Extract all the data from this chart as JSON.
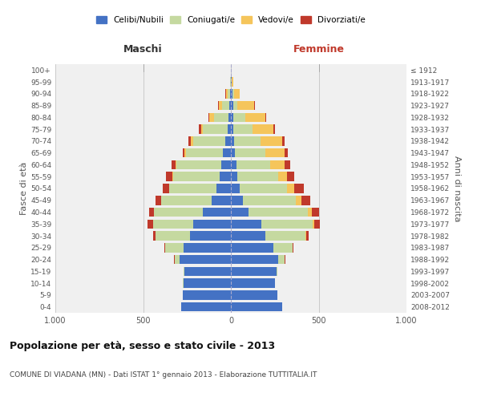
{
  "age_groups": [
    "0-4",
    "5-9",
    "10-14",
    "15-19",
    "20-24",
    "25-29",
    "30-34",
    "35-39",
    "40-44",
    "45-49",
    "50-54",
    "55-59",
    "60-64",
    "65-69",
    "70-74",
    "75-79",
    "80-84",
    "85-89",
    "90-94",
    "95-99",
    "100+"
  ],
  "birth_years": [
    "2008-2012",
    "2003-2007",
    "1998-2002",
    "1993-1997",
    "1988-1992",
    "1983-1987",
    "1978-1982",
    "1973-1977",
    "1968-1972",
    "1963-1967",
    "1958-1962",
    "1953-1957",
    "1948-1952",
    "1943-1947",
    "1938-1942",
    "1933-1937",
    "1928-1932",
    "1923-1927",
    "1918-1922",
    "1913-1917",
    "≤ 1912"
  ],
  "male": {
    "celibe": [
      285,
      275,
      270,
      265,
      290,
      270,
      235,
      215,
      160,
      110,
      80,
      65,
      55,
      45,
      30,
      20,
      15,
      10,
      5,
      2,
      2
    ],
    "coniugato": [
      0,
      0,
      2,
      5,
      30,
      105,
      195,
      230,
      280,
      285,
      270,
      265,
      255,
      210,
      185,
      140,
      80,
      40,
      15,
      2,
      0
    ],
    "vedovo": [
      0,
      0,
      0,
      0,
      0,
      0,
      0,
      0,
      0,
      2,
      3,
      5,
      5,
      8,
      12,
      10,
      30,
      20,
      8,
      2,
      0
    ],
    "divorziato": [
      0,
      0,
      0,
      0,
      3,
      5,
      15,
      30,
      25,
      30,
      35,
      35,
      25,
      12,
      15,
      12,
      3,
      2,
      2,
      0,
      0
    ]
  },
  "female": {
    "nubile": [
      290,
      265,
      250,
      260,
      270,
      240,
      195,
      175,
      100,
      70,
      50,
      35,
      30,
      25,
      20,
      15,
      15,
      12,
      8,
      5,
      2
    ],
    "coniugata": [
      0,
      0,
      2,
      5,
      35,
      110,
      230,
      290,
      340,
      300,
      270,
      235,
      195,
      170,
      150,
      110,
      65,
      25,
      10,
      0,
      0
    ],
    "vedova": [
      0,
      0,
      0,
      0,
      2,
      3,
      5,
      10,
      20,
      30,
      40,
      50,
      80,
      110,
      120,
      115,
      115,
      95,
      30,
      10,
      0
    ],
    "divorziata": [
      0,
      0,
      0,
      0,
      2,
      5,
      15,
      30,
      40,
      50,
      55,
      40,
      35,
      20,
      15,
      10,
      5,
      3,
      2,
      0,
      0
    ]
  },
  "colors": {
    "celibe": "#4472C4",
    "coniugato": "#C5D9A0",
    "vedovo": "#F5C55B",
    "divorziato": "#C0392B"
  },
  "legend_labels": [
    "Celibi/Nubili",
    "Coniugati/e",
    "Vedovi/e",
    "Divorziati/e"
  ],
  "title": "Popolazione per età, sesso e stato civile - 2013",
  "subtitle": "COMUNE DI VIADANA (MN) - Dati ISTAT 1° gennaio 2013 - Elaborazione TUTTITALIA.IT",
  "ylabel_left": "Fasce di età",
  "ylabel_right": "Anni di nascita",
  "xlabel_left": "Maschi",
  "xlabel_right": "Femmine",
  "xlim": 1000,
  "bg_color": "#ffffff",
  "plot_bg": "#f0f0f0"
}
